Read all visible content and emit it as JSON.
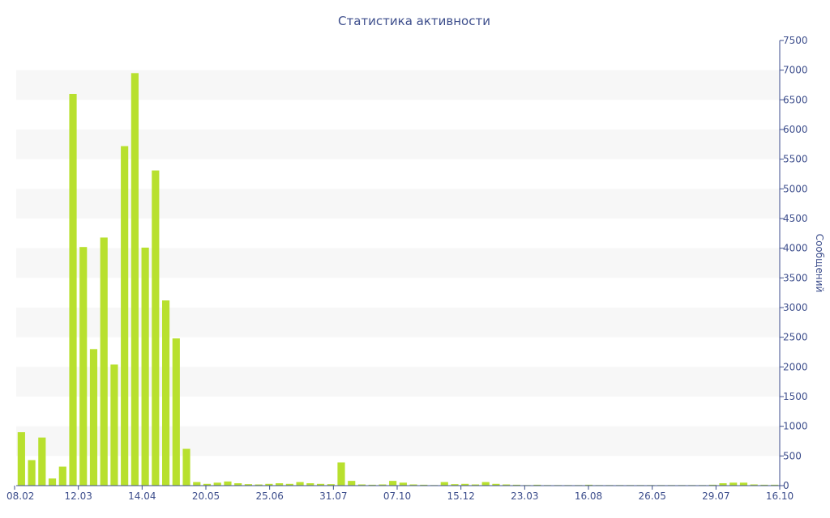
{
  "chart_data": {
    "type": "bar",
    "title": "Статистика активности",
    "ylabel": "Сообщений",
    "xlabel": "",
    "ylim": [
      0,
      7500
    ],
    "y_ticks": [
      0,
      500,
      1000,
      1500,
      2000,
      2500,
      3000,
      3500,
      4000,
      4500,
      5000,
      5500,
      6000,
      6500,
      7000,
      7500
    ],
    "x_tick_labels": [
      "08.02",
      "12.03",
      "14.04",
      "20.05",
      "25.06",
      "31.07",
      "07.10",
      "15.12",
      "23.03",
      "16.08",
      "26.05",
      "29.07",
      "16.10"
    ],
    "y_axis_position": "right",
    "grid": "horizontal bands",
    "bar_color": "#b8e02e",
    "band_color": "#f7f7f7",
    "axis_color": "#3d4e8c",
    "values": [
      900,
      430,
      810,
      120,
      320,
      6600,
      4020,
      2300,
      4180,
      2040,
      5720,
      6950,
      4010,
      5310,
      3120,
      2480,
      620,
      60,
      30,
      50,
      70,
      40,
      25,
      20,
      30,
      40,
      30,
      60,
      40,
      30,
      25,
      390,
      80,
      20,
      15,
      20,
      80,
      50,
      20,
      15,
      10,
      60,
      25,
      30,
      20,
      60,
      30,
      20,
      15,
      10,
      15,
      10,
      10,
      10,
      10,
      15,
      10,
      10,
      10,
      10,
      10,
      10,
      10,
      10,
      10,
      10,
      10,
      15,
      40,
      50,
      50,
      20,
      15,
      15
    ]
  }
}
